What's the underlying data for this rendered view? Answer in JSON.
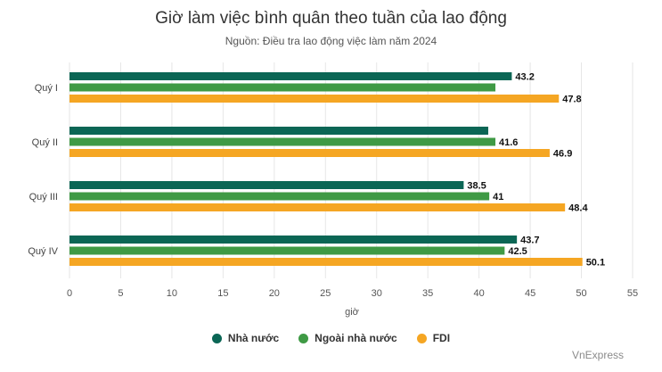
{
  "chart_data": {
    "type": "bar",
    "orientation": "horizontal",
    "title": "Giờ làm việc bình quân theo tuần của lao động",
    "subtitle": "Nguồn: Điều tra lao động việc làm năm 2024",
    "categories": [
      "Quý I",
      "Quý II",
      "Quý III",
      "Quý IV"
    ],
    "series": [
      {
        "name": "Nhà nước",
        "color": "#0b6655",
        "values": [
          43.2,
          40.9,
          38.5,
          43.7
        ],
        "labels": [
          "43.2",
          "",
          "38.5",
          "43.7"
        ]
      },
      {
        "name": "Ngoài nhà nước",
        "color": "#3f9a45",
        "values": [
          41.6,
          41.6,
          41,
          42.5
        ],
        "labels": [
          "",
          "41.6",
          "41",
          "42.5"
        ]
      },
      {
        "name": "FDI",
        "color": "#f5a623",
        "values": [
          47.8,
          46.9,
          48.4,
          50.1
        ],
        "labels": [
          "47.8",
          "46.9",
          "48.4",
          "50.1"
        ]
      }
    ],
    "xlabel": "giờ",
    "xlim": [
      0,
      55
    ],
    "xticks": [
      0,
      5,
      10,
      15,
      20,
      25,
      30,
      35,
      40,
      45,
      50,
      55
    ],
    "grid": true,
    "legend_position": "bottom"
  },
  "footer": {
    "source": "VnExpress"
  }
}
